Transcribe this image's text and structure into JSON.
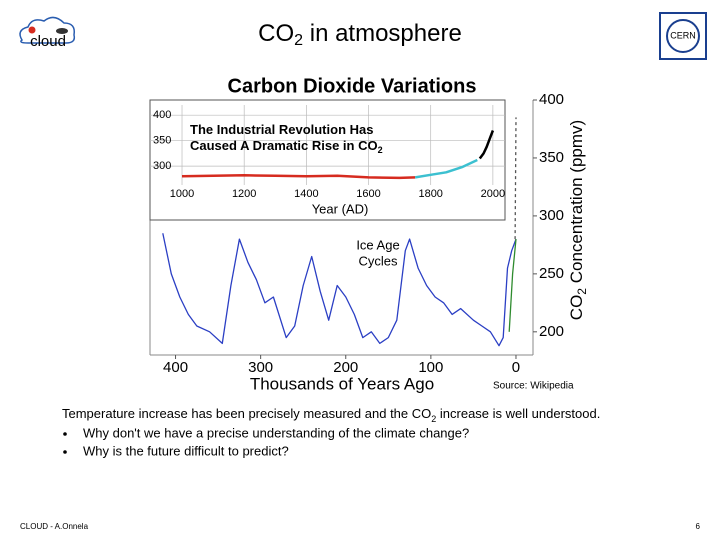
{
  "header": {
    "logo_left": "cloud",
    "title": "CO",
    "title_sub": "2",
    "title_rest": " in atmosphere",
    "logo_right": "CERN"
  },
  "chart_data": [
    {
      "type": "line",
      "title": "Carbon Dioxide Variations",
      "x_label": "Thousands of Years Ago",
      "y_label": "CO",
      "y_label_sub": "2",
      "y_label_rest": " Concentration (ppmv)",
      "annotation": [
        "Ice Age",
        "Cycles"
      ],
      "source": "Source: Wikipedia",
      "xlim": [
        430,
        -20
      ],
      "xticks": [
        400,
        300,
        200,
        100,
        0
      ],
      "ylim": [
        180,
        400
      ],
      "yticks": [
        200,
        250,
        300,
        350,
        400
      ],
      "y_axis_side": "right",
      "series": [
        {
          "color": "#2b3fc4",
          "x": [
            415,
            405,
            395,
            385,
            375,
            360,
            345,
            335,
            325,
            315,
            305,
            295,
            285,
            270,
            260,
            250,
            240,
            230,
            220,
            210,
            200,
            190,
            180,
            170,
            160,
            150,
            140,
            130,
            125,
            115,
            105,
            95,
            85,
            75,
            65,
            50,
            40,
            30,
            20,
            15,
            10,
            5,
            0
          ],
          "values": [
            285,
            250,
            230,
            215,
            205,
            200,
            190,
            240,
            280,
            260,
            245,
            225,
            230,
            195,
            205,
            240,
            265,
            235,
            210,
            240,
            230,
            215,
            195,
            200,
            190,
            195,
            210,
            270,
            280,
            255,
            240,
            230,
            225,
            215,
            220,
            210,
            205,
            200,
            188,
            195,
            255,
            270,
            280
          ]
        },
        {
          "color": "#2e8b2e",
          "x": [
            8,
            4,
            0
          ],
          "values": [
            200,
            250,
            280
          ]
        },
        {
          "color": "#555555",
          "dashed": true,
          "x": [
            1,
            0
          ],
          "values": [
            280,
            385
          ]
        }
      ]
    },
    {
      "type": "line",
      "x_label": "Year (AD)",
      "annotation": [
        "The Industrial Revolution Has",
        "Caused A Dramatic Rise in CO"
      ],
      "annotation_sub": "2",
      "xlim": [
        897,
        2039
      ],
      "xticks": [
        1000,
        1200,
        1400,
        1600,
        1800,
        2000
      ],
      "ylim": [
        263,
        420
      ],
      "yticks": [
        300,
        350,
        400
      ],
      "grid": true,
      "series": [
        {
          "color": "#d62b1f",
          "x": [
            1000,
            1100,
            1200,
            1300,
            1400,
            1500,
            1600,
            1700,
            1750
          ],
          "values": [
            280,
            281,
            282,
            281,
            280,
            281,
            278,
            277,
            278
          ]
        },
        {
          "color": "#3cc0d0",
          "x": [
            1750,
            1800,
            1850,
            1900,
            1950
          ],
          "values": [
            278,
            283,
            288,
            298,
            312
          ]
        },
        {
          "color": "#000000",
          "x": [
            1958,
            1970,
            1980,
            1990,
            2000
          ],
          "values": [
            315,
            325,
            338,
            354,
            370
          ]
        }
      ]
    }
  ],
  "body": {
    "intro": "Temperature increase has been precisely measured and the CO",
    "intro_sub": "2",
    "intro_rest": " increase is well understood.",
    "bullets": [
      "Why don't we have a precise understanding of the climate change?",
      "Why is the future difficult to predict?"
    ]
  },
  "footer": {
    "left": "CLOUD - A.Onnela",
    "page": "6"
  }
}
